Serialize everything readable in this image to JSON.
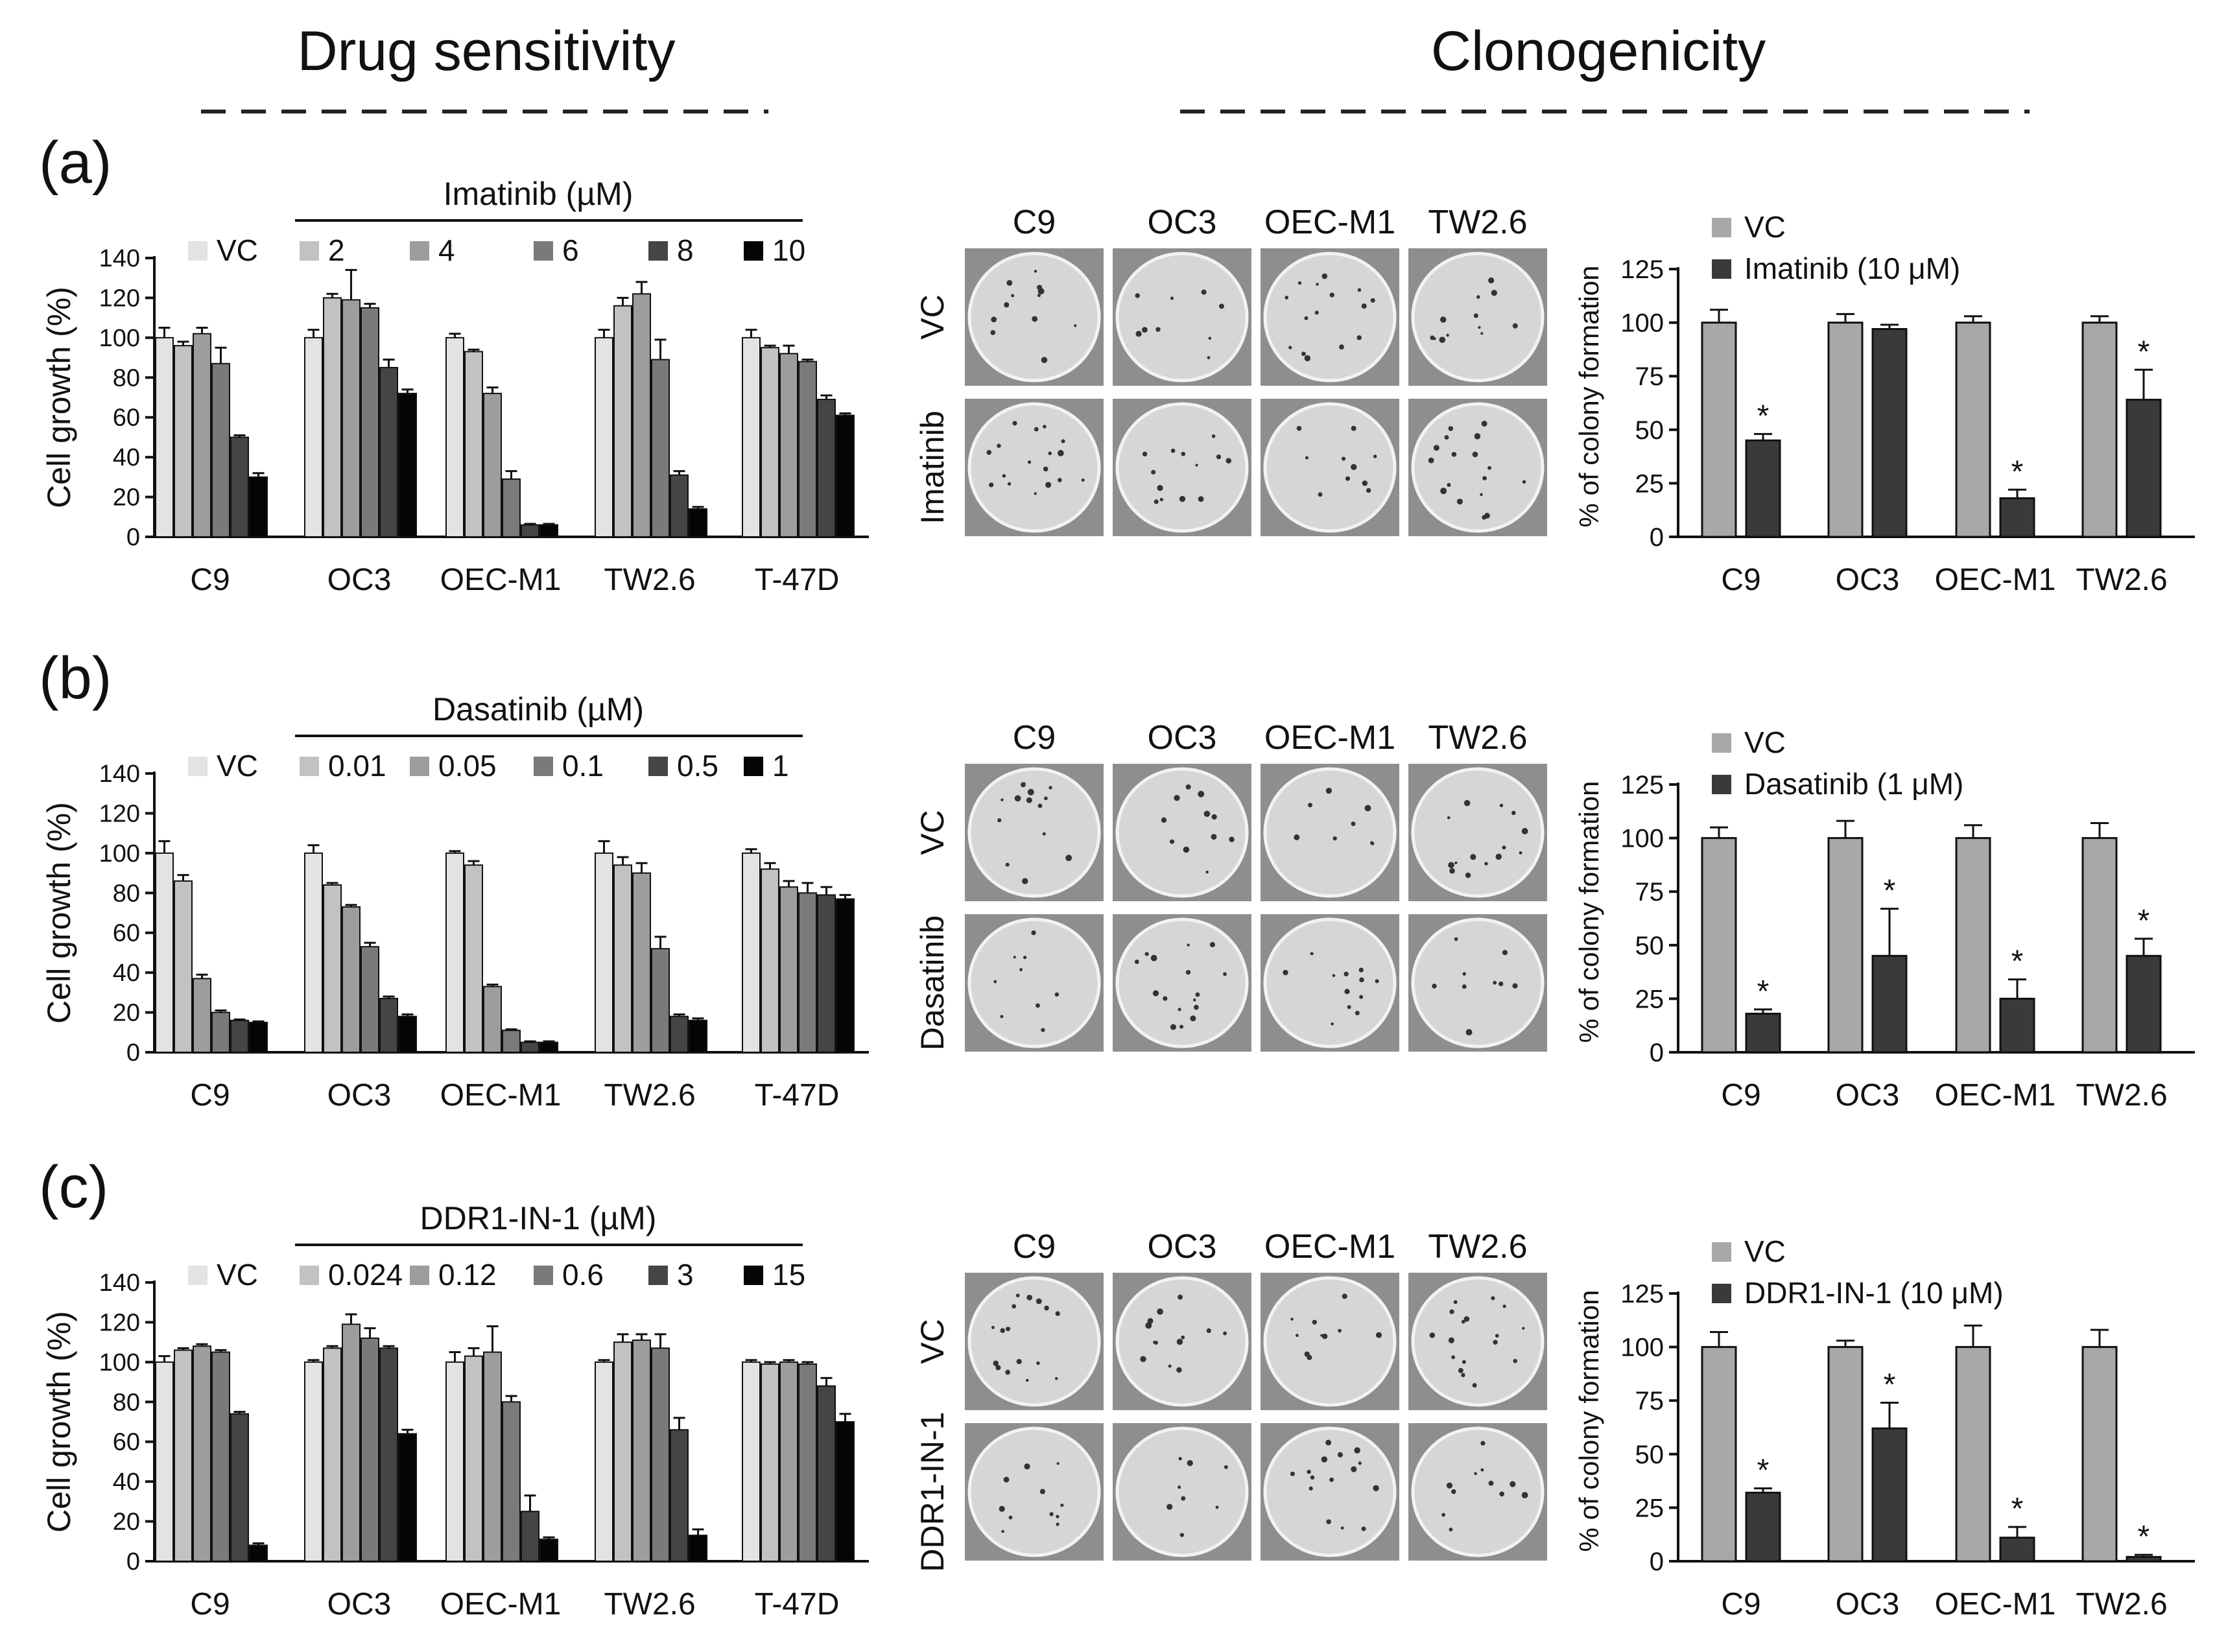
{
  "headers": {
    "left": "Drug sensitivity",
    "right": "Clonogenicity"
  },
  "panel_letters": [
    "(a)",
    "(b)",
    "(c)"
  ],
  "colors": {
    "growth_shades": [
      "#e3e3e3",
      "#c2c2c2",
      "#9d9d9d",
      "#7a7a7a",
      "#454545",
      "#050505"
    ],
    "colony_vc": "#a8a8a8",
    "colony_drug": "#3a3a3a",
    "plate_background": "#8e8e8e",
    "plate_well": "#d6d6d6"
  },
  "plate_labels": {
    "columns": [
      "C9",
      "OC3",
      "OEC-M1",
      "TW2.6"
    ],
    "rows": [
      [
        "VC",
        "Imatinib"
      ],
      [
        "VC",
        "Dasatinib"
      ],
      [
        "VC",
        "DDR1-IN-1"
      ]
    ]
  },
  "chart_data": [
    {
      "type": "bar",
      "panel": "(a)",
      "title": "Imatinib (µM)",
      "ylabel": "Cell growth (%)",
      "ylim": [
        0,
        140
      ],
      "yticks": [
        0,
        20,
        40,
        60,
        80,
        100,
        120,
        140
      ],
      "categories": [
        "C9",
        "OC3",
        "OEC-M1",
        "TW2.6",
        "T-47D"
      ],
      "legend": [
        "VC",
        "2",
        "4",
        "6",
        "8",
        "10"
      ],
      "series": [
        {
          "name": "VC",
          "values": [
            100,
            100,
            100,
            100,
            100
          ],
          "errors": [
            5,
            4,
            2,
            4,
            4
          ]
        },
        {
          "name": "2",
          "values": [
            96,
            120,
            93,
            116,
            95
          ],
          "errors": [
            2,
            2,
            1,
            4,
            1
          ]
        },
        {
          "name": "4",
          "values": [
            102,
            119,
            72,
            122,
            92
          ],
          "errors": [
            3,
            15,
            3,
            6,
            4
          ]
        },
        {
          "name": "6",
          "values": [
            87,
            115,
            29,
            89,
            88
          ],
          "errors": [
            8,
            2,
            4,
            10,
            1
          ]
        },
        {
          "name": "8",
          "values": [
            50,
            85,
            6,
            31,
            69
          ],
          "errors": [
            1,
            4,
            0.5,
            2,
            2
          ]
        },
        {
          "name": "10",
          "values": [
            30,
            72,
            6,
            14,
            61
          ],
          "errors": [
            2,
            2,
            0.5,
            1,
            1
          ]
        }
      ]
    },
    {
      "type": "bar",
      "panel": "(a)",
      "ylabel": "% of colony formation",
      "ylim": [
        0,
        125
      ],
      "yticks": [
        0,
        25,
        50,
        75,
        100,
        125
      ],
      "categories": [
        "C9",
        "OC3",
        "OEC-M1",
        "TW2.6"
      ],
      "legend": [
        "VC",
        "Imatinib (10 μM)"
      ],
      "series": [
        {
          "name": "VC",
          "values": [
            100,
            100,
            100,
            100
          ],
          "errors": [
            6,
            4,
            3,
            3
          ]
        },
        {
          "name": "Imatinib (10 μM)",
          "values": [
            45,
            97,
            18,
            64
          ],
          "errors": [
            3,
            2,
            4,
            14
          ]
        }
      ],
      "significance": [
        true,
        false,
        true,
        true
      ],
      "significance_mark": "*"
    },
    {
      "type": "bar",
      "panel": "(b)",
      "title": "Dasatinib (µM)",
      "ylabel": "Cell growth (%)",
      "ylim": [
        0,
        140
      ],
      "yticks": [
        0,
        20,
        40,
        60,
        80,
        100,
        120,
        140
      ],
      "categories": [
        "C9",
        "OC3",
        "OEC-M1",
        "TW2.6",
        "T-47D"
      ],
      "legend": [
        "VC",
        "0.01",
        "0.05",
        "0.1",
        "0.5",
        "1"
      ],
      "series": [
        {
          "name": "VC",
          "values": [
            100,
            100,
            100,
            100,
            100
          ],
          "errors": [
            6,
            4,
            1,
            6,
            2
          ]
        },
        {
          "name": "0.01",
          "values": [
            86,
            84,
            94,
            94,
            92
          ],
          "errors": [
            3,
            1,
            2,
            4,
            3
          ]
        },
        {
          "name": "0.05",
          "values": [
            37,
            73,
            33,
            90,
            83
          ],
          "errors": [
            2,
            1,
            1,
            5,
            3
          ]
        },
        {
          "name": "0.1",
          "values": [
            20,
            53,
            11,
            52,
            80
          ],
          "errors": [
            1,
            2,
            0.5,
            6,
            5
          ]
        },
        {
          "name": "0.5",
          "values": [
            16,
            27,
            5,
            18,
            79
          ],
          "errors": [
            0.5,
            1,
            0.5,
            1,
            4
          ]
        },
        {
          "name": "1",
          "values": [
            15,
            18,
            5,
            16,
            77
          ],
          "errors": [
            0.5,
            1,
            0.5,
            1,
            2
          ]
        }
      ]
    },
    {
      "type": "bar",
      "panel": "(b)",
      "ylabel": "% of colony formation",
      "ylim": [
        0,
        125
      ],
      "yticks": [
        0,
        25,
        50,
        75,
        100,
        125
      ],
      "categories": [
        "C9",
        "OC3",
        "OEC-M1",
        "TW2.6"
      ],
      "legend": [
        "VC",
        "Dasatinib (1 μM)"
      ],
      "series": [
        {
          "name": "VC",
          "values": [
            100,
            100,
            100,
            100
          ],
          "errors": [
            5,
            8,
            6,
            7
          ]
        },
        {
          "name": "Dasatinib (1 μM)",
          "values": [
            18,
            45,
            25,
            45
          ],
          "errors": [
            2,
            22,
            9,
            8
          ]
        }
      ],
      "significance": [
        true,
        true,
        true,
        true
      ],
      "significance_mark": "*"
    },
    {
      "type": "bar",
      "panel": "(c)",
      "title": "DDR1-IN-1 (µM)",
      "ylabel": "Cell growth (%)",
      "ylim": [
        0,
        140
      ],
      "yticks": [
        0,
        20,
        40,
        60,
        80,
        100,
        120,
        140
      ],
      "categories": [
        "C9",
        "OC3",
        "OEC-M1",
        "TW2.6",
        "T-47D"
      ],
      "legend": [
        "VC",
        "0.024",
        "0.12",
        "0.6",
        "3",
        "15"
      ],
      "series": [
        {
          "name": "VC",
          "values": [
            100,
            100,
            100,
            100,
            100
          ],
          "errors": [
            3,
            1,
            5,
            1,
            1
          ]
        },
        {
          "name": "0.024",
          "values": [
            106,
            107,
            103,
            110,
            99
          ],
          "errors": [
            1,
            1,
            4,
            4,
            1
          ]
        },
        {
          "name": "0.12",
          "values": [
            108,
            119,
            105,
            111,
            100
          ],
          "errors": [
            1,
            5,
            13,
            3,
            1
          ]
        },
        {
          "name": "0.6",
          "values": [
            105,
            112,
            80,
            107,
            99
          ],
          "errors": [
            1,
            5,
            3,
            7,
            1
          ]
        },
        {
          "name": "3",
          "values": [
            74,
            107,
            25,
            66,
            88
          ],
          "errors": [
            1,
            1,
            8,
            6,
            4
          ]
        },
        {
          "name": "15",
          "values": [
            8,
            64,
            11,
            13,
            70
          ],
          "errors": [
            1,
            2,
            1,
            3,
            4
          ]
        }
      ]
    },
    {
      "type": "bar",
      "panel": "(c)",
      "ylabel": "% of colony formation",
      "ylim": [
        0,
        125
      ],
      "yticks": [
        0,
        25,
        50,
        75,
        100,
        125
      ],
      "categories": [
        "C9",
        "OC3",
        "OEC-M1",
        "TW2.6"
      ],
      "legend": [
        "VC",
        "DDR1-IN-1 (10 μM)"
      ],
      "series": [
        {
          "name": "VC",
          "values": [
            100,
            100,
            100,
            100
          ],
          "errors": [
            7,
            3,
            10,
            8
          ]
        },
        {
          "name": "DDR1-IN-1 (10 μM)",
          "values": [
            32,
            62,
            11,
            2
          ],
          "errors": [
            2,
            12,
            5,
            1
          ]
        }
      ],
      "significance": [
        true,
        true,
        true,
        true
      ],
      "significance_mark": "*"
    }
  ]
}
